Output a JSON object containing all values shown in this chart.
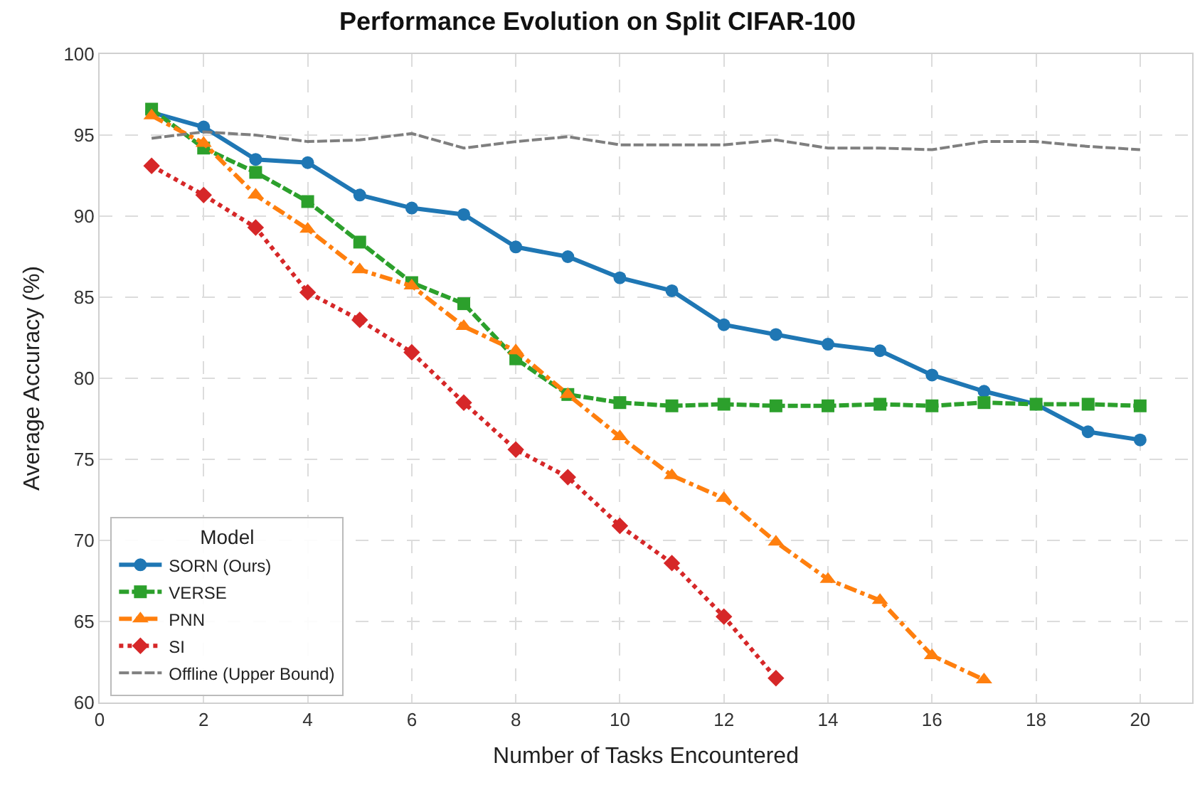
{
  "chart_data": {
    "type": "line",
    "title": "Performance Evolution on Split CIFAR-100",
    "xlabel": "Number of Tasks Encountered",
    "ylabel": "Average Accuracy (%)",
    "legend_title": "Model",
    "x": [
      1,
      2,
      3,
      4,
      5,
      6,
      7,
      8,
      9,
      10,
      11,
      12,
      13,
      14,
      15,
      16,
      17,
      18,
      19,
      20
    ],
    "series": [
      {
        "name": "SORN (Ours)",
        "color": "#1f77b4",
        "marker": "circle",
        "line_style": "solid",
        "values": [
          96.4,
          95.5,
          93.5,
          93.3,
          91.3,
          90.5,
          90.1,
          88.1,
          87.5,
          86.2,
          85.4,
          83.3,
          82.7,
          82.1,
          81.7,
          80.2,
          79.2,
          78.4,
          76.7,
          76.2
        ]
      },
      {
        "name": "VERSE",
        "color": "#2ca02c",
        "marker": "square",
        "line_style": "dashed",
        "values": [
          96.6,
          94.2,
          92.7,
          90.9,
          88.4,
          85.9,
          84.6,
          81.2,
          79.0,
          78.5,
          78.3,
          78.4,
          78.3,
          78.3,
          78.4,
          78.3,
          78.5,
          78.4,
          78.4,
          78.3
        ]
      },
      {
        "name": "PNN",
        "color": "#ff7f0e",
        "marker": "triangle",
        "line_style": "dashdot",
        "values": [
          96.2,
          94.5,
          91.3,
          89.2,
          86.7,
          85.7,
          83.2,
          81.7,
          79.0,
          76.4,
          74.0,
          72.6,
          69.9,
          67.6,
          66.3,
          62.9,
          61.4,
          null,
          null,
          null
        ]
      },
      {
        "name": "SI",
        "color": "#d62728",
        "marker": "diamond",
        "line_style": "dotted",
        "values": [
          93.1,
          91.3,
          89.3,
          85.3,
          83.6,
          81.6,
          78.5,
          75.6,
          73.9,
          70.9,
          68.6,
          65.3,
          61.5,
          null,
          null,
          null,
          null,
          null,
          null,
          null
        ]
      },
      {
        "name": "Offline (Upper Bound)",
        "color": "#7f7f7f",
        "marker": "none",
        "line_style": "dashed",
        "values": [
          94.8,
          95.2,
          95.0,
          94.6,
          94.7,
          95.1,
          94.2,
          94.6,
          94.9,
          94.4,
          94.4,
          94.4,
          94.7,
          94.2,
          94.2,
          94.1,
          94.6,
          94.6,
          94.3,
          94.1
        ]
      }
    ],
    "xlim": [
      0,
      21
    ],
    "xticks": [
      0,
      2,
      4,
      6,
      8,
      10,
      12,
      14,
      16,
      18,
      20
    ],
    "ylim": [
      60,
      100
    ],
    "yticks": [
      60,
      65,
      70,
      75,
      80,
      85,
      90,
      95,
      100
    ],
    "grid": true,
    "legend": "bottom left"
  }
}
